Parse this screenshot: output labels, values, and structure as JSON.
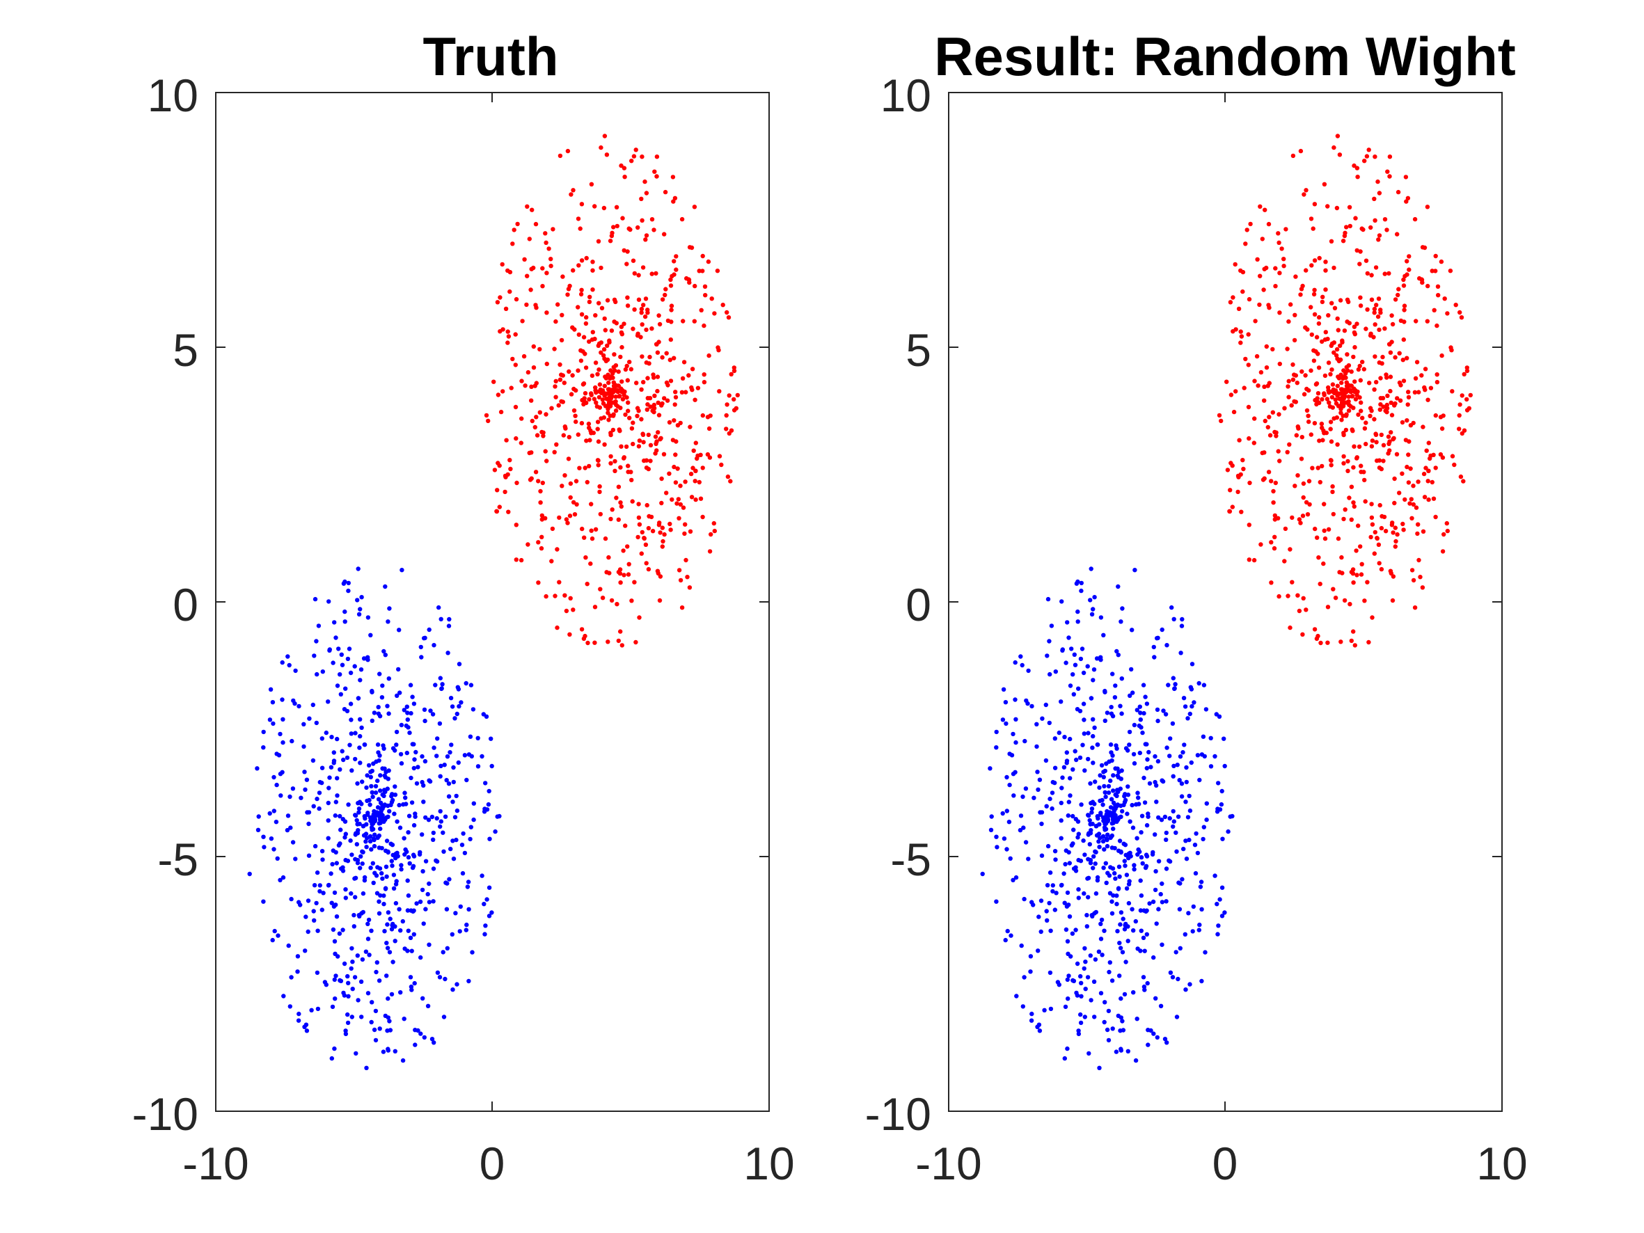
{
  "chart_data": [
    {
      "type": "scatter",
      "title": "Truth",
      "xlabel": "",
      "ylabel": "",
      "xlim": [
        -10,
        10
      ],
      "ylim": [
        -10,
        10
      ],
      "xticks": [
        "-10",
        "0",
        "10"
      ],
      "yticks": [
        "10",
        "5",
        "0",
        "-5",
        "-10"
      ],
      "grid": false,
      "legend": "none",
      "series": [
        {
          "color": "#ff0000",
          "center": [
            4.3,
            4.1
          ],
          "spread": [
            4.6,
            5.1
          ],
          "count": 750,
          "seed": 11
        },
        {
          "color": "#0000ff",
          "center": [
            -4.3,
            -4.3
          ],
          "spread": [
            4.6,
            5.0
          ],
          "count": 750,
          "seed": 23
        }
      ]
    },
    {
      "type": "scatter",
      "title": "Result: Random Wight",
      "xlabel": "",
      "ylabel": "",
      "xlim": [
        -10,
        10
      ],
      "ylim": [
        -10,
        10
      ],
      "xticks": [
        "-10",
        "0",
        "10"
      ],
      "yticks": [
        "10",
        "5",
        "0",
        "-5",
        "-10"
      ],
      "grid": false,
      "legend": "none",
      "series": [
        {
          "color": "#ff0000",
          "center": [
            4.3,
            4.1
          ],
          "spread": [
            4.6,
            5.1
          ],
          "count": 750,
          "seed": 11
        },
        {
          "color": "#0000ff",
          "center": [
            -4.3,
            -4.3
          ],
          "spread": [
            4.6,
            5.0
          ],
          "count": 750,
          "seed": 23
        }
      ]
    }
  ]
}
